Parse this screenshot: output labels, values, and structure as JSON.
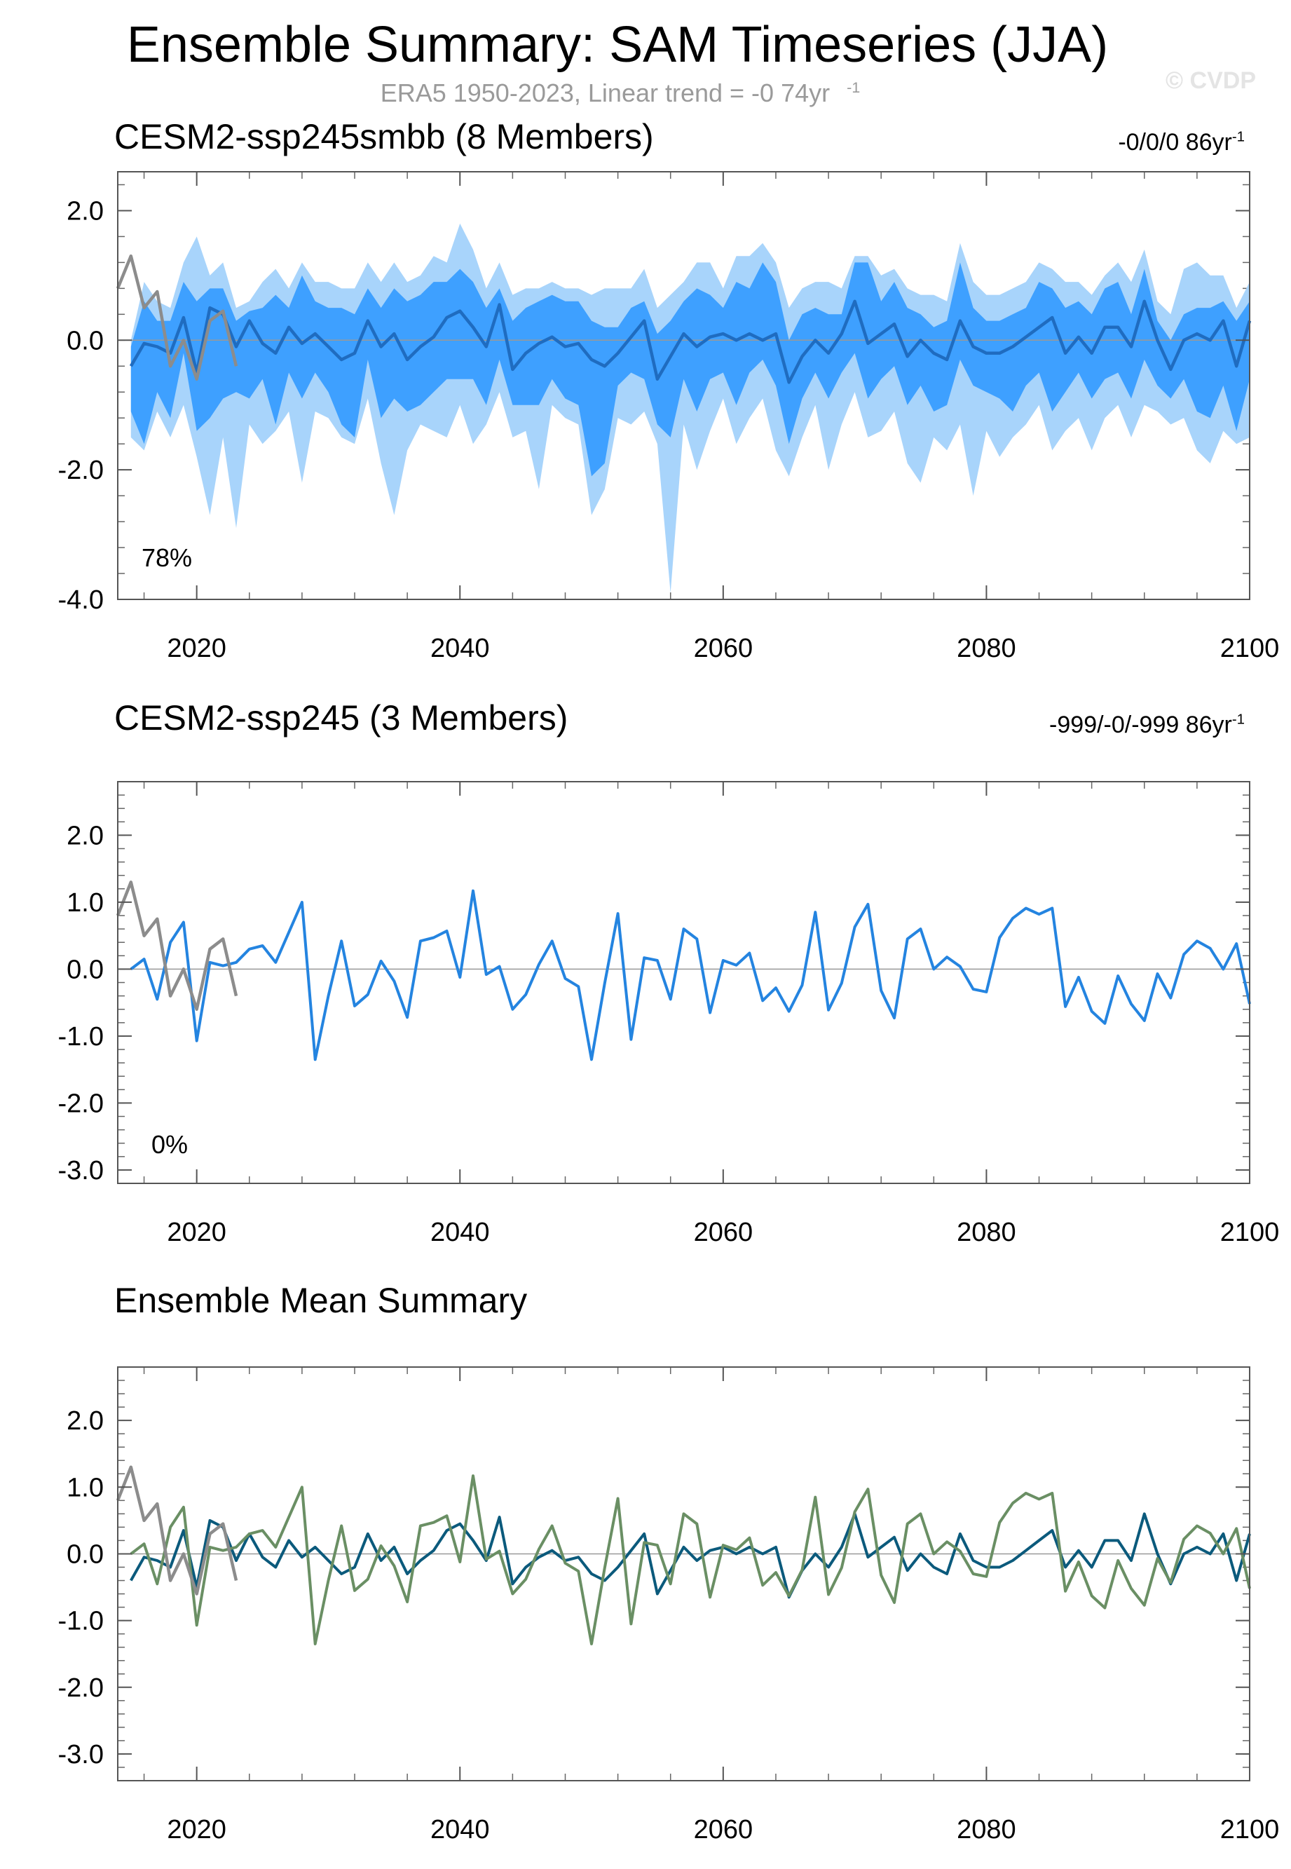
{
  "title": "Ensemble Summary: SAM Timeseries (JJA)",
  "subtitle": "ERA5 1950-2023, Linear trend = -0 74yr",
  "subtitle_sup": "-1",
  "copyright": "© CVDP",
  "colors": {
    "obs": "#8c8c8c",
    "smbb_line": "#1f6cc0",
    "smbb_band_inner": "#3ea0ff",
    "smbb_band_outer": "#a8d4fb",
    "ssp245_member": "#2484e0",
    "mean_smbb": "#0b5a7c",
    "mean_ssp245": "#6a8f64"
  },
  "chart_data": [
    {
      "type": "line",
      "panel_id": "smbb",
      "title": "CESM2-ssp245smbb (8 Members)",
      "trend_text": "-0/0/0 86yr",
      "trend_sup": "-1",
      "percent_label": "78%",
      "xlim": [
        2014,
        2100
      ],
      "ylim": [
        -4.0,
        2.6
      ],
      "yticks": [
        2.0,
        0.0,
        -2.0,
        -4.0
      ],
      "ytick_labels": [
        "2.0",
        "0.0",
        "-2.0",
        "-4.0"
      ],
      "xticks": [
        2020,
        2040,
        2060,
        2080,
        2100
      ],
      "xtick_labels": [
        "2020",
        "2040",
        "2060",
        "2080",
        "2100"
      ],
      "x": [
        2015,
        2016,
        2017,
        2018,
        2019,
        2020,
        2021,
        2022,
        2023,
        2024,
        2025,
        2026,
        2027,
        2028,
        2029,
        2030,
        2031,
        2032,
        2033,
        2034,
        2035,
        2036,
        2037,
        2038,
        2039,
        2040,
        2041,
        2042,
        2043,
        2044,
        2045,
        2046,
        2047,
        2048,
        2049,
        2050,
        2051,
        2052,
        2053,
        2054,
        2055,
        2056,
        2057,
        2058,
        2059,
        2060,
        2061,
        2062,
        2063,
        2064,
        2065,
        2066,
        2067,
        2068,
        2069,
        2070,
        2071,
        2072,
        2073,
        2074,
        2075,
        2076,
        2077,
        2078,
        2079,
        2080,
        2081,
        2082,
        2083,
        2084,
        2085,
        2086,
        2087,
        2088,
        2089,
        2090,
        2091,
        2092,
        2093,
        2094,
        2095,
        2096,
        2097,
        2098,
        2099,
        2100
      ],
      "series": [
        {
          "name": "ensemble mean",
          "role": "mean",
          "values": [
            -0.4,
            -0.05,
            -0.1,
            -0.2,
            0.35,
            -0.5,
            0.5,
            0.4,
            -0.1,
            0.3,
            -0.05,
            -0.2,
            0.2,
            -0.05,
            0.1,
            -0.1,
            -0.3,
            -0.2,
            0.3,
            -0.1,
            0.1,
            -0.3,
            -0.1,
            0.05,
            0.35,
            0.45,
            0.2,
            -0.1,
            0.55,
            -0.45,
            -0.2,
            -0.05,
            0.05,
            -0.1,
            -0.05,
            -0.3,
            -0.4,
            -0.2,
            0.05,
            0.3,
            -0.6,
            -0.25,
            0.1,
            -0.1,
            0.05,
            0.1,
            0.0,
            0.1,
            0.0,
            0.1,
            -0.65,
            -0.25,
            0.0,
            -0.2,
            0.1,
            0.6,
            -0.05,
            0.1,
            0.25,
            -0.25,
            0.0,
            -0.2,
            -0.3,
            0.3,
            -0.1,
            -0.2,
            -0.2,
            -0.1,
            0.05,
            0.2,
            0.35,
            -0.2,
            0.05,
            -0.2,
            0.2,
            0.2,
            -0.1,
            0.6,
            0.0,
            -0.45,
            0.0,
            0.1,
            0.0,
            0.3,
            -0.4,
            0.3
          ]
        },
        {
          "name": "spread upper (inner)",
          "role": "band_inner_upper",
          "values": [
            -0.1,
            0.6,
            0.3,
            0.3,
            0.9,
            0.6,
            0.8,
            0.8,
            0.3,
            0.45,
            0.5,
            0.7,
            0.5,
            1.0,
            0.6,
            0.5,
            0.5,
            0.4,
            0.8,
            0.5,
            0.8,
            0.6,
            0.7,
            0.9,
            0.9,
            1.1,
            0.9,
            0.5,
            0.8,
            0.3,
            0.5,
            0.6,
            0.7,
            0.6,
            0.6,
            0.3,
            0.2,
            0.2,
            0.5,
            0.6,
            0.1,
            0.3,
            0.6,
            0.8,
            0.7,
            0.5,
            0.9,
            0.8,
            1.2,
            0.9,
            0.0,
            0.4,
            0.5,
            0.4,
            0.4,
            1.2,
            1.2,
            0.6,
            0.9,
            0.5,
            0.4,
            0.2,
            0.3,
            1.2,
            0.5,
            0.3,
            0.3,
            0.4,
            0.5,
            0.9,
            0.8,
            0.5,
            0.6,
            0.4,
            0.8,
            0.9,
            0.4,
            1.1,
            0.3,
            0.0,
            0.4,
            0.5,
            0.5,
            0.6,
            0.3,
            0.6
          ]
        },
        {
          "name": "spread lower (inner)",
          "role": "band_inner_lower",
          "values": [
            -1.1,
            -1.6,
            -0.8,
            -1.2,
            -0.2,
            -1.4,
            -1.2,
            -0.9,
            -0.8,
            -0.9,
            -0.6,
            -1.3,
            -0.5,
            -0.9,
            -0.5,
            -0.8,
            -1.3,
            -1.5,
            -0.3,
            -1.2,
            -0.9,
            -1.1,
            -1.0,
            -0.8,
            -0.6,
            -0.6,
            -0.6,
            -1.0,
            -0.3,
            -1.0,
            -1.0,
            -1.0,
            -0.6,
            -0.9,
            -1.0,
            -2.1,
            -1.9,
            -0.7,
            -0.5,
            -0.6,
            -1.3,
            -1.5,
            -0.6,
            -1.1,
            -0.6,
            -0.5,
            -1.0,
            -0.5,
            -0.3,
            -0.7,
            -1.6,
            -0.9,
            -0.5,
            -0.9,
            -0.5,
            -0.2,
            -0.9,
            -0.6,
            -0.4,
            -1.0,
            -0.7,
            -1.1,
            -1.0,
            -0.3,
            -0.7,
            -0.8,
            -0.9,
            -1.1,
            -0.7,
            -0.5,
            -1.1,
            -0.8,
            -0.5,
            -0.9,
            -0.6,
            -0.5,
            -0.9,
            -0.3,
            -0.7,
            -0.9,
            -0.6,
            -1.1,
            -1.2,
            -0.7,
            -1.4,
            -0.6
          ]
        },
        {
          "name": "spread upper (outer)",
          "role": "band_outer_upper",
          "values": [
            0.0,
            0.9,
            0.6,
            0.5,
            1.2,
            1.6,
            1.0,
            1.2,
            0.5,
            0.6,
            0.9,
            1.1,
            0.8,
            1.2,
            0.9,
            0.9,
            0.8,
            0.8,
            1.2,
            0.9,
            1.2,
            0.9,
            1.0,
            1.3,
            1.2,
            1.8,
            1.4,
            0.8,
            1.2,
            0.7,
            0.8,
            0.8,
            0.9,
            0.8,
            0.8,
            0.7,
            0.8,
            0.8,
            0.8,
            1.1,
            0.5,
            0.7,
            0.9,
            1.2,
            1.2,
            0.8,
            1.3,
            1.3,
            1.5,
            1.2,
            0.5,
            0.8,
            0.9,
            0.9,
            0.8,
            1.3,
            1.3,
            1.0,
            1.1,
            0.8,
            0.7,
            0.7,
            0.6,
            1.5,
            0.9,
            0.7,
            0.7,
            0.8,
            0.9,
            1.2,
            1.1,
            0.9,
            0.9,
            0.7,
            1.0,
            1.2,
            0.9,
            1.4,
            0.6,
            0.4,
            1.1,
            1.2,
            1.0,
            1.0,
            0.5,
            0.9
          ]
        },
        {
          "name": "spread lower (outer)",
          "role": "band_outer_lower",
          "values": [
            -1.5,
            -1.7,
            -1.1,
            -1.5,
            -1.0,
            -1.8,
            -2.7,
            -1.5,
            -2.9,
            -1.3,
            -1.6,
            -1.4,
            -1.1,
            -2.2,
            -1.1,
            -1.2,
            -1.5,
            -1.6,
            -0.9,
            -1.9,
            -2.7,
            -1.7,
            -1.3,
            -1.4,
            -1.5,
            -1.0,
            -1.6,
            -1.3,
            -0.8,
            -1.5,
            -1.4,
            -2.3,
            -1.0,
            -1.2,
            -1.3,
            -2.7,
            -2.3,
            -1.2,
            -1.3,
            -1.1,
            -1.6,
            -3.9,
            -1.3,
            -2.0,
            -1.4,
            -0.9,
            -1.6,
            -1.2,
            -0.9,
            -1.7,
            -2.1,
            -1.5,
            -1.0,
            -2.0,
            -1.3,
            -0.8,
            -1.5,
            -1.4,
            -1.1,
            -1.9,
            -2.2,
            -1.5,
            -1.7,
            -1.3,
            -2.4,
            -1.4,
            -1.8,
            -1.5,
            -1.3,
            -1.0,
            -1.7,
            -1.4,
            -1.2,
            -1.7,
            -1.2,
            -1.0,
            -1.5,
            -1.0,
            -1.1,
            -1.3,
            -1.2,
            -1.7,
            -1.9,
            -1.4,
            -1.6,
            -1.5
          ]
        }
      ]
    },
    {
      "type": "line",
      "panel_id": "ssp245",
      "title": "CESM2-ssp245 (3 Members)",
      "trend_text": "-999/-0/-999 86yr",
      "trend_sup": "-1",
      "percent_label": "0%",
      "xlim": [
        2014,
        2100
      ],
      "ylim": [
        -3.2,
        2.8
      ],
      "yticks": [
        2.0,
        1.0,
        0.0,
        -1.0,
        -2.0,
        -3.0
      ],
      "ytick_labels": [
        "2.0",
        "1.0",
        "0.0",
        "-1.0",
        "-2.0",
        "-3.0"
      ],
      "xticks": [
        2020,
        2040,
        2060,
        2080,
        2100
      ],
      "xtick_labels": [
        "2020",
        "2040",
        "2060",
        "2080",
        "2100"
      ],
      "x": [
        2015,
        2016,
        2017,
        2018,
        2019,
        2020,
        2021,
        2022,
        2023,
        2024,
        2025,
        2026,
        2027,
        2028,
        2029,
        2030,
        2031,
        2032,
        2033,
        2034,
        2035,
        2036,
        2037,
        2038,
        2039,
        2040,
        2041,
        2042,
        2043,
        2044,
        2045,
        2046,
        2047,
        2048,
        2049,
        2050,
        2051,
        2052,
        2053,
        2054,
        2055,
        2056,
        2057,
        2058,
        2059,
        2060,
        2061,
        2062,
        2063,
        2064,
        2065,
        2066,
        2067,
        2068,
        2069,
        2070,
        2071,
        2072,
        2073,
        2074,
        2075,
        2076,
        2077,
        2078,
        2079,
        2080,
        2081,
        2082,
        2083,
        2084,
        2085,
        2086,
        2087,
        2088,
        2089,
        2090,
        2091,
        2092,
        2093,
        2094,
        2095,
        2096,
        2097,
        2098,
        2099,
        2100
      ],
      "series": [
        {
          "name": "ensemble mean",
          "role": "member",
          "values": [
            0.0,
            0.15,
            -0.45,
            0.4,
            0.7,
            -1.07,
            0.1,
            0.05,
            0.1,
            0.3,
            0.35,
            0.1,
            0.55,
            1.0,
            -1.35,
            -0.4,
            0.42,
            -0.55,
            -0.38,
            0.12,
            -0.18,
            -0.72,
            0.42,
            0.47,
            0.57,
            -0.12,
            1.17,
            -0.08,
            0.04,
            -0.6,
            -0.38,
            0.07,
            0.42,
            -0.14,
            -0.26,
            -1.35,
            -0.21,
            0.83,
            -1.05,
            0.17,
            0.13,
            -0.45,
            0.6,
            0.45,
            -0.65,
            0.13,
            0.06,
            0.24,
            -0.47,
            -0.28,
            -0.63,
            -0.24,
            0.85,
            -0.61,
            -0.21,
            0.63,
            0.97,
            -0.32,
            -0.73,
            0.45,
            0.6,
            0.0,
            0.18,
            0.04,
            -0.3,
            -0.34,
            0.47,
            0.76,
            0.91,
            0.82,
            0.91,
            -0.56,
            -0.12,
            -0.63,
            -0.81,
            -0.1,
            -0.52,
            -0.77,
            -0.07,
            -0.43,
            0.22,
            0.42,
            0.31,
            0.0,
            0.38,
            -0.52
          ]
        }
      ]
    },
    {
      "type": "line",
      "panel_id": "mean",
      "title": "Ensemble Mean Summary",
      "xlim": [
        2014,
        2100
      ],
      "ylim": [
        -3.4,
        2.8
      ],
      "yticks": [
        2.0,
        1.0,
        0.0,
        -1.0,
        -2.0,
        -3.0
      ],
      "ytick_labels": [
        "2.0",
        "1.0",
        "0.0",
        "-1.0",
        "-2.0",
        "-3.0"
      ],
      "xticks": [
        2020,
        2040,
        2060,
        2080,
        2100
      ],
      "xtick_labels": [
        "2020",
        "2040",
        "2060",
        "2080",
        "2100"
      ],
      "x": [
        2015,
        2016,
        2017,
        2018,
        2019,
        2020,
        2021,
        2022,
        2023,
        2024,
        2025,
        2026,
        2027,
        2028,
        2029,
        2030,
        2031,
        2032,
        2033,
        2034,
        2035,
        2036,
        2037,
        2038,
        2039,
        2040,
        2041,
        2042,
        2043,
        2044,
        2045,
        2046,
        2047,
        2048,
        2049,
        2050,
        2051,
        2052,
        2053,
        2054,
        2055,
        2056,
        2057,
        2058,
        2059,
        2060,
        2061,
        2062,
        2063,
        2064,
        2065,
        2066,
        2067,
        2068,
        2069,
        2070,
        2071,
        2072,
        2073,
        2074,
        2075,
        2076,
        2077,
        2078,
        2079,
        2080,
        2081,
        2082,
        2083,
        2084,
        2085,
        2086,
        2087,
        2088,
        2089,
        2090,
        2091,
        2092,
        2093,
        2094,
        2095,
        2096,
        2097,
        2098,
        2099,
        2100
      ],
      "series": [
        {
          "name": "CESM2-ssp245smbb",
          "role": "mean_smbb",
          "values": [
            -0.4,
            -0.05,
            -0.1,
            -0.2,
            0.35,
            -0.5,
            0.5,
            0.4,
            -0.1,
            0.3,
            -0.05,
            -0.2,
            0.2,
            -0.05,
            0.1,
            -0.1,
            -0.3,
            -0.2,
            0.3,
            -0.1,
            0.1,
            -0.3,
            -0.1,
            0.05,
            0.35,
            0.45,
            0.2,
            -0.1,
            0.55,
            -0.45,
            -0.2,
            -0.05,
            0.05,
            -0.1,
            -0.05,
            -0.3,
            -0.4,
            -0.2,
            0.05,
            0.3,
            -0.6,
            -0.25,
            0.1,
            -0.1,
            0.05,
            0.1,
            0.0,
            0.1,
            0.0,
            0.1,
            -0.65,
            -0.25,
            0.0,
            -0.2,
            0.1,
            0.6,
            -0.05,
            0.1,
            0.25,
            -0.25,
            0.0,
            -0.2,
            -0.3,
            0.3,
            -0.1,
            -0.2,
            -0.2,
            -0.1,
            0.05,
            0.2,
            0.35,
            -0.2,
            0.05,
            -0.2,
            0.2,
            0.2,
            -0.1,
            0.6,
            0.0,
            -0.45,
            0.0,
            0.1,
            0.0,
            0.3,
            -0.4,
            0.3
          ]
        },
        {
          "name": "CESM2-ssp245",
          "role": "mean_ssp245",
          "values": [
            0.0,
            0.15,
            -0.45,
            0.4,
            0.7,
            -1.07,
            0.1,
            0.05,
            0.1,
            0.3,
            0.35,
            0.1,
            0.55,
            1.0,
            -1.35,
            -0.4,
            0.42,
            -0.55,
            -0.38,
            0.12,
            -0.18,
            -0.72,
            0.42,
            0.47,
            0.57,
            -0.12,
            1.17,
            -0.08,
            0.04,
            -0.6,
            -0.38,
            0.07,
            0.42,
            -0.14,
            -0.26,
            -1.35,
            -0.21,
            0.83,
            -1.05,
            0.17,
            0.13,
            -0.45,
            0.6,
            0.45,
            -0.65,
            0.13,
            0.06,
            0.24,
            -0.47,
            -0.28,
            -0.63,
            -0.24,
            0.85,
            -0.61,
            -0.21,
            0.63,
            0.97,
            -0.32,
            -0.73,
            0.45,
            0.6,
            0.0,
            0.18,
            0.04,
            -0.3,
            -0.34,
            0.47,
            0.76,
            0.91,
            0.82,
            0.91,
            -0.56,
            -0.12,
            -0.63,
            -0.81,
            -0.1,
            -0.52,
            -0.77,
            -0.07,
            -0.43,
            0.22,
            0.42,
            0.31,
            0.0,
            0.38,
            -0.52
          ]
        }
      ]
    }
  ],
  "observations": {
    "name": "ERA5",
    "x": [
      2014,
      2015,
      2016,
      2017,
      2018,
      2019,
      2020,
      2021,
      2022,
      2023
    ],
    "values": [
      0.8,
      1.3,
      0.5,
      0.75,
      -0.4,
      0.0,
      -0.6,
      0.3,
      0.45,
      -0.4
    ]
  }
}
